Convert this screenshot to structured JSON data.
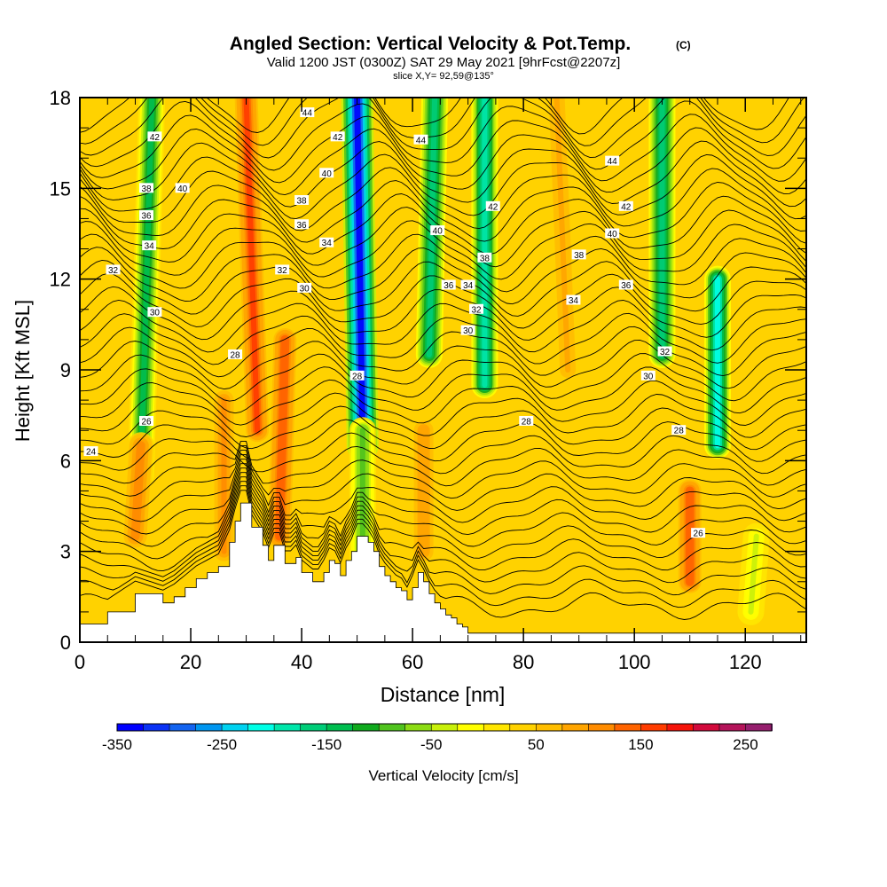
{
  "header": {
    "title": "Angled Section: Vertical Velocity & Pot.Temp.",
    "title_unit": "(C)",
    "valid_line": "Valid 1200 JST (0300Z) SAT 29 May 2021 [9hrFcst@2207z]",
    "slice_line": "slice X,Y= 92,59@135°"
  },
  "chart_data": {
    "type": "heatmap",
    "xlabel": "Distance [nm]",
    "ylabel": "Height [Kft MSL]",
    "xlim": [
      0,
      131
    ],
    "ylim": [
      0,
      18
    ],
    "x_ticks": [
      0,
      20,
      40,
      60,
      80,
      100,
      120
    ],
    "y_ticks": [
      0,
      3,
      6,
      9,
      12,
      15,
      18
    ],
    "field": {
      "name": "Vertical Velocity",
      "units": "cm/s",
      "background_value": 25,
      "plumes": [
        {
          "x_bottom": 11,
          "y_bottom": 5.5,
          "x_top": 13,
          "y_top": 18,
          "value": -130
        },
        {
          "x_bottom": 10,
          "y_bottom": 3.5,
          "x_top": 11,
          "y_top": 6.5,
          "value": 120
        },
        {
          "x_bottom": 32,
          "y_bottom": 7.0,
          "x_top": 30,
          "y_top": 18,
          "value": 150
        },
        {
          "x_bottom": 36,
          "y_bottom": 3.5,
          "x_top": 37,
          "y_top": 10,
          "value": 145
        },
        {
          "x_bottom": 26,
          "y_bottom": 3.0,
          "x_top": 26,
          "y_top": 8,
          "value": 100
        },
        {
          "x_bottom": 51,
          "y_bottom": 6.5,
          "x_top": 50,
          "y_top": 18,
          "value": -330
        },
        {
          "x_bottom": 51,
          "y_bottom": 2.5,
          "x_top": 51,
          "y_top": 7,
          "value": -90
        },
        {
          "x_bottom": 63,
          "y_bottom": 9.5,
          "x_top": 64,
          "y_top": 18,
          "value": -160
        },
        {
          "x_bottom": 62,
          "y_bottom": 3.0,
          "x_top": 62,
          "y_top": 7,
          "value": 95
        },
        {
          "x_bottom": 73,
          "y_bottom": 8.5,
          "x_top": 73,
          "y_top": 18,
          "value": -200
        },
        {
          "x_bottom": 88,
          "y_bottom": 9.0,
          "x_top": 86,
          "y_top": 18,
          "value": 80
        },
        {
          "x_bottom": 105,
          "y_bottom": 9.5,
          "x_top": 105,
          "y_top": 18,
          "value": -170
        },
        {
          "x_bottom": 115,
          "y_bottom": 6.5,
          "x_top": 115,
          "y_top": 12,
          "value": -220
        },
        {
          "x_bottom": 110,
          "y_bottom": 2.0,
          "x_top": 110,
          "y_top": 5,
          "value": 145
        },
        {
          "x_bottom": 121,
          "y_bottom": 1.0,
          "x_top": 122,
          "y_top": 3.5,
          "value": -30
        }
      ]
    },
    "terrain": {
      "x": [
        0,
        5,
        10,
        15,
        17,
        19,
        21,
        23,
        25,
        27,
        28,
        29,
        30,
        31,
        33,
        34,
        35,
        36,
        37,
        38,
        39,
        40,
        42,
        43,
        44,
        45,
        46,
        47,
        48,
        49,
        50,
        51,
        52,
        53,
        54,
        55,
        56,
        57,
        58,
        59,
        60,
        61,
        62,
        63,
        64,
        65,
        66,
        67,
        68,
        69,
        70,
        131
      ],
      "top": [
        0.6,
        1.0,
        1.6,
        1.3,
        1.5,
        1.8,
        2.1,
        2.3,
        2.5,
        3.3,
        4.0,
        4.6,
        4.6,
        3.8,
        3.2,
        2.7,
        3.2,
        3.2,
        2.6,
        2.6,
        2.8,
        2.3,
        2.0,
        2.0,
        2.3,
        2.7,
        2.6,
        2.2,
        2.7,
        3.0,
        3.5,
        3.5,
        3.3,
        3.0,
        2.5,
        2.2,
        2.0,
        1.8,
        1.7,
        1.4,
        1.8,
        2.3,
        2.0,
        1.6,
        1.3,
        1.1,
        0.9,
        0.8,
        0.6,
        0.5,
        0.3,
        0.3
      ]
    },
    "isentropes": {
      "units": "C",
      "levels": [
        24,
        26,
        28,
        30,
        32,
        34,
        36,
        38,
        40,
        42,
        44
      ],
      "labels": [
        {
          "value": "42",
          "x": 13.5,
          "y": 16.7
        },
        {
          "value": "38",
          "x": 12,
          "y": 15.0
        },
        {
          "value": "40",
          "x": 18.5,
          "y": 15.0
        },
        {
          "value": "36",
          "x": 12,
          "y": 14.1
        },
        {
          "value": "34",
          "x": 12.5,
          "y": 13.1
        },
        {
          "value": "32",
          "x": 6,
          "y": 12.3
        },
        {
          "value": "30",
          "x": 13.5,
          "y": 10.9
        },
        {
          "value": "28",
          "x": 28,
          "y": 9.5
        },
        {
          "value": "26",
          "x": 12,
          "y": 7.3
        },
        {
          "value": "24",
          "x": 2,
          "y": 6.3
        },
        {
          "value": "44",
          "x": 41,
          "y": 17.5
        },
        {
          "value": "42",
          "x": 46.5,
          "y": 16.7
        },
        {
          "value": "40",
          "x": 44.5,
          "y": 15.5
        },
        {
          "value": "38",
          "x": 40,
          "y": 14.6
        },
        {
          "value": "36",
          "x": 40,
          "y": 13.8
        },
        {
          "value": "34",
          "x": 44.5,
          "y": 13.2
        },
        {
          "value": "32",
          "x": 36.5,
          "y": 12.3
        },
        {
          "value": "30",
          "x": 40.5,
          "y": 11.7
        },
        {
          "value": "28",
          "x": 50,
          "y": 8.8
        },
        {
          "value": "44",
          "x": 61.5,
          "y": 16.6
        },
        {
          "value": "40",
          "x": 64.5,
          "y": 13.6
        },
        {
          "value": "36",
          "x": 66.5,
          "y": 11.8
        },
        {
          "value": "34",
          "x": 70,
          "y": 11.8
        },
        {
          "value": "38",
          "x": 73,
          "y": 12.7
        },
        {
          "value": "42",
          "x": 74.5,
          "y": 14.4
        },
        {
          "value": "32",
          "x": 71.5,
          "y": 11.0
        },
        {
          "value": "30",
          "x": 70,
          "y": 10.3
        },
        {
          "value": "28",
          "x": 80.5,
          "y": 7.3
        },
        {
          "value": "44",
          "x": 96,
          "y": 15.9
        },
        {
          "value": "42",
          "x": 98.5,
          "y": 14.4
        },
        {
          "value": "40",
          "x": 96,
          "y": 13.5
        },
        {
          "value": "38",
          "x": 90,
          "y": 12.8
        },
        {
          "value": "36",
          "x": 98.5,
          "y": 11.8
        },
        {
          "value": "34",
          "x": 89,
          "y": 11.3
        },
        {
          "value": "32",
          "x": 105.5,
          "y": 9.6
        },
        {
          "value": "30",
          "x": 102.5,
          "y": 8.8
        },
        {
          "value": "28",
          "x": 108,
          "y": 7.0
        },
        {
          "value": "26",
          "x": 111.5,
          "y": 3.6
        }
      ]
    },
    "colorbar": {
      "label": "Vertical Velocity [cm/s]",
      "boundaries": [
        -350,
        -325,
        -300,
        -275,
        -250,
        -225,
        -200,
        -175,
        -150,
        -125,
        -100,
        -75,
        -50,
        -25,
        0,
        25,
        50,
        75,
        100,
        125,
        150,
        175,
        200,
        225,
        250,
        275
      ],
      "colors": [
        "#0000ff",
        "#0a32f5",
        "#1464f0",
        "#0096f0",
        "#00d2f0",
        "#00ffe6",
        "#00e6aa",
        "#00cd78",
        "#00be50",
        "#10aa1e",
        "#50c31e",
        "#8cdc14",
        "#c8f00a",
        "#ffff00",
        "#ffe600",
        "#ffd200",
        "#ffbe00",
        "#ffa500",
        "#ff8c00",
        "#ff6400",
        "#ff3c00",
        "#f5140a",
        "#d20a3c",
        "#b4145a",
        "#961e6e",
        "#6e147d"
      ],
      "tick_values": [
        -350,
        -250,
        -150,
        -50,
        50,
        150,
        250
      ],
      "tick_labels": [
        "-350",
        "-250",
        "-150",
        "-50",
        "50",
        "150",
        "250"
      ]
    }
  }
}
